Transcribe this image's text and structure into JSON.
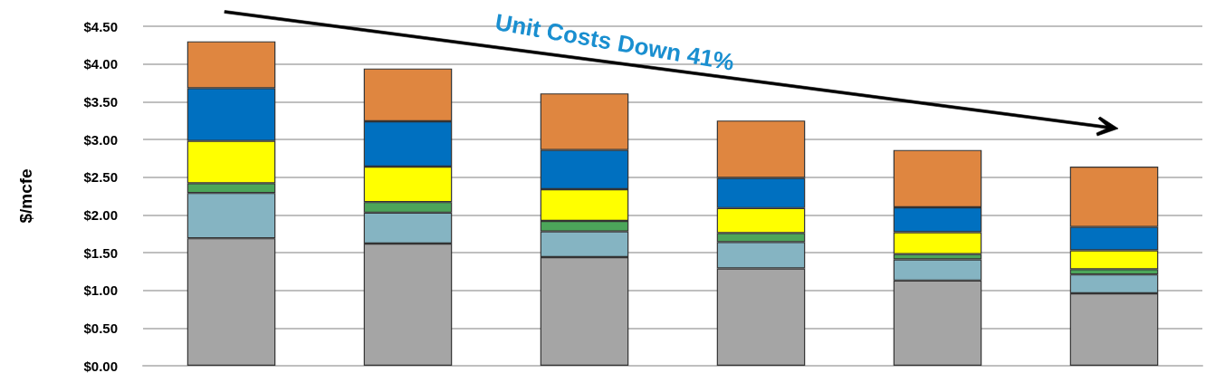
{
  "chart_data": {
    "type": "bar",
    "stacked": true,
    "ylabel": "$/mcfe",
    "annotations": [
      "Unit Costs Down 41%"
    ],
    "categories": [
      null,
      null,
      null,
      null,
      null,
      null
    ],
    "series": [
      {
        "color": "#a5a5a5",
        "values": [
          1.69,
          1.62,
          1.44,
          1.29,
          1.13,
          0.96
        ]
      },
      {
        "color": "#85b4c2",
        "values": [
          0.6,
          0.41,
          0.34,
          0.35,
          0.28,
          0.25
        ]
      },
      {
        "color": "#4ca55a",
        "values": [
          0.13,
          0.14,
          0.14,
          0.12,
          0.07,
          0.07
        ]
      },
      {
        "color": "#ffff00",
        "values": [
          0.56,
          0.47,
          0.42,
          0.33,
          0.29,
          0.25
        ]
      },
      {
        "color": "#0070c0",
        "values": [
          0.7,
          0.6,
          0.52,
          0.4,
          0.33,
          0.31
        ]
      },
      {
        "color": "#df8640",
        "values": [
          0.62,
          0.7,
          0.75,
          0.76,
          0.76,
          0.8
        ]
      }
    ],
    "ylim": [
      0,
      4.5
    ],
    "yticks": [
      {
        "value": 0,
        "label": "$0.00"
      },
      {
        "value": 0.5,
        "label": "$0.50"
      },
      {
        "value": 1,
        "label": "$1.00"
      },
      {
        "value": 1.5,
        "label": "$1.50"
      },
      {
        "value": 2,
        "label": "$2.00"
      },
      {
        "value": 2.5,
        "label": "$2.50"
      },
      {
        "value": 3,
        "label": "$3.00"
      },
      {
        "value": 3.5,
        "label": "$3.50"
      },
      {
        "value": 4,
        "label": "$4.00"
      },
      {
        "value": 4.5,
        "label": "$4.50"
      }
    ],
    "grid": "y"
  }
}
